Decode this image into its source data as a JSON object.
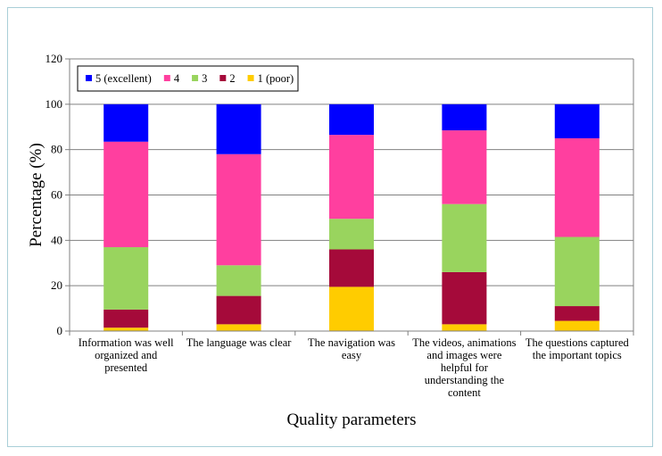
{
  "chart_data": {
    "type": "bar",
    "stacked": true,
    "categories": [
      [
        "Information was well",
        "organized and",
        "presented"
      ],
      [
        "The language was clear"
      ],
      [
        "The navigation was",
        "easy"
      ],
      [
        "The videos, animations",
        "and images were",
        "helpful for",
        "understanding the",
        "content"
      ],
      [
        "The questions captured",
        "the important topics"
      ]
    ],
    "series": [
      {
        "name": "1 (poor)",
        "color": "#ffcc00",
        "values": [
          1.5,
          3,
          19.5,
          3,
          4.5
        ]
      },
      {
        "name": "2",
        "color": "#a50a3a",
        "values": [
          8,
          12.5,
          16.5,
          23,
          6.5
        ]
      },
      {
        "name": "3",
        "color": "#99d45e",
        "values": [
          27.5,
          13.5,
          13.5,
          30,
          30.5
        ]
      },
      {
        "name": "4",
        "color": "#ff3f9f",
        "values": [
          46.5,
          49,
          37,
          32.5,
          43.5
        ]
      },
      {
        "name": "5 (excellent)",
        "color": "#0000ff",
        "values": [
          16.5,
          22,
          13.5,
          11.5,
          15
        ]
      }
    ],
    "legend_order": [
      "5 (excellent)",
      "4",
      "3",
      "2",
      "1 (poor)"
    ],
    "legend_position": "top-left",
    "xlabel": "Quality parameters",
    "ylabel": "Percentage (%)",
    "ylim": [
      0,
      120
    ],
    "yticks": [
      0,
      20,
      40,
      60,
      80,
      100,
      120
    ],
    "grid": true,
    "grid_color": "#808080"
  }
}
